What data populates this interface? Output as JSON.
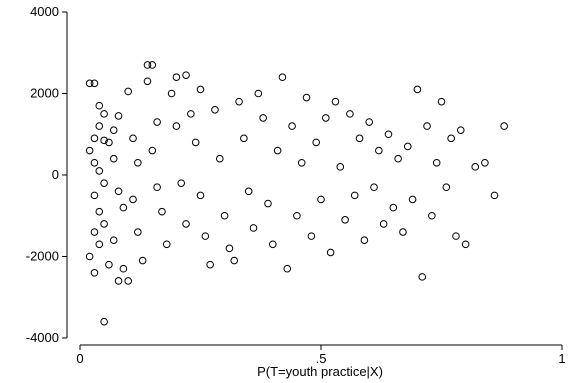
{
  "chart_data": {
    "type": "scatter",
    "title": "",
    "xlabel": "P(T=youth practice|X)",
    "ylabel": "",
    "xlim": [
      0,
      1
    ],
    "ylim": [
      -4000,
      4000
    ],
    "x_ticks": [
      {
        "value": 0,
        "label": "0"
      },
      {
        "value": 0.5,
        "label": ".5"
      },
      {
        "value": 1,
        "label": "1"
      }
    ],
    "y_ticks": [
      {
        "value": -4000,
        "label": "-4000"
      },
      {
        "value": -2000,
        "label": "-2000"
      },
      {
        "value": 0,
        "label": "0"
      },
      {
        "value": 2000,
        "label": "2000"
      },
      {
        "value": 4000,
        "label": "4000"
      }
    ],
    "grid": false,
    "marker": "hollow-circle",
    "marker_color": "#000000",
    "series": [
      {
        "points": [
          [
            0.02,
            2250
          ],
          [
            0.03,
            2250
          ],
          [
            0.04,
            1700
          ],
          [
            0.05,
            1500
          ],
          [
            0.04,
            1200
          ],
          [
            0.03,
            900
          ],
          [
            0.05,
            850
          ],
          [
            0.06,
            800
          ],
          [
            0.02,
            600
          ],
          [
            0.03,
            300
          ],
          [
            0.04,
            100
          ],
          [
            0.05,
            -200
          ],
          [
            0.03,
            -500
          ],
          [
            0.04,
            -900
          ],
          [
            0.05,
            -1200
          ],
          [
            0.03,
            -1400
          ],
          [
            0.04,
            -1700
          ],
          [
            0.02,
            -2000
          ],
          [
            0.06,
            -2200
          ],
          [
            0.03,
            -2400
          ],
          [
            0.05,
            -3600
          ],
          [
            0.07,
            1100
          ],
          [
            0.08,
            1450
          ],
          [
            0.07,
            400
          ],
          [
            0.08,
            -400
          ],
          [
            0.09,
            -800
          ],
          [
            0.07,
            -1600
          ],
          [
            0.09,
            -2300
          ],
          [
            0.08,
            -2600
          ],
          [
            0.1,
            -2600
          ],
          [
            0.1,
            2050
          ],
          [
            0.11,
            900
          ],
          [
            0.12,
            300
          ],
          [
            0.11,
            -600
          ],
          [
            0.12,
            -1400
          ],
          [
            0.13,
            -2100
          ],
          [
            0.14,
            2700
          ],
          [
            0.15,
            2700
          ],
          [
            0.14,
            2300
          ],
          [
            0.16,
            1300
          ],
          [
            0.15,
            600
          ],
          [
            0.16,
            -300
          ],
          [
            0.17,
            -900
          ],
          [
            0.18,
            -1700
          ],
          [
            0.19,
            2000
          ],
          [
            0.2,
            1200
          ],
          [
            0.21,
            -200
          ],
          [
            0.22,
            -1200
          ],
          [
            0.2,
            2400
          ],
          [
            0.22,
            2450
          ],
          [
            0.23,
            1500
          ],
          [
            0.24,
            800
          ],
          [
            0.25,
            -500
          ],
          [
            0.26,
            -1500
          ],
          [
            0.27,
            -2200
          ],
          [
            0.25,
            2100
          ],
          [
            0.28,
            1600
          ],
          [
            0.29,
            400
          ],
          [
            0.3,
            -1000
          ],
          [
            0.31,
            -1800
          ],
          [
            0.32,
            -2100
          ],
          [
            0.33,
            1800
          ],
          [
            0.34,
            900
          ],
          [
            0.35,
            -400
          ],
          [
            0.36,
            -1300
          ],
          [
            0.37,
            2000
          ],
          [
            0.38,
            1400
          ],
          [
            0.39,
            -700
          ],
          [
            0.4,
            -1700
          ],
          [
            0.41,
            600
          ],
          [
            0.42,
            2400
          ],
          [
            0.43,
            -2300
          ],
          [
            0.44,
            1200
          ],
          [
            0.45,
            -1000
          ],
          [
            0.46,
            300
          ],
          [
            0.47,
            1900
          ],
          [
            0.48,
            -1500
          ],
          [
            0.49,
            800
          ],
          [
            0.5,
            -600
          ],
          [
            0.51,
            1400
          ],
          [
            0.52,
            -1900
          ],
          [
            0.53,
            1800
          ],
          [
            0.54,
            200
          ],
          [
            0.55,
            -1100
          ],
          [
            0.56,
            1500
          ],
          [
            0.57,
            -500
          ],
          [
            0.58,
            900
          ],
          [
            0.59,
            -1600
          ],
          [
            0.6,
            1300
          ],
          [
            0.61,
            -300
          ],
          [
            0.62,
            600
          ],
          [
            0.63,
            -1200
          ],
          [
            0.64,
            1000
          ],
          [
            0.65,
            -800
          ],
          [
            0.66,
            400
          ],
          [
            0.67,
            -1400
          ],
          [
            0.68,
            700
          ],
          [
            0.69,
            -600
          ],
          [
            0.7,
            2100
          ],
          [
            0.71,
            -2500
          ],
          [
            0.72,
            1200
          ],
          [
            0.73,
            -1000
          ],
          [
            0.74,
            300
          ],
          [
            0.75,
            1800
          ],
          [
            0.76,
            -300
          ],
          [
            0.77,
            900
          ],
          [
            0.78,
            -1500
          ],
          [
            0.79,
            1100
          ],
          [
            0.8,
            -1700
          ],
          [
            0.82,
            200
          ],
          [
            0.84,
            300
          ],
          [
            0.86,
            -500
          ],
          [
            0.88,
            1200
          ]
        ]
      }
    ]
  }
}
